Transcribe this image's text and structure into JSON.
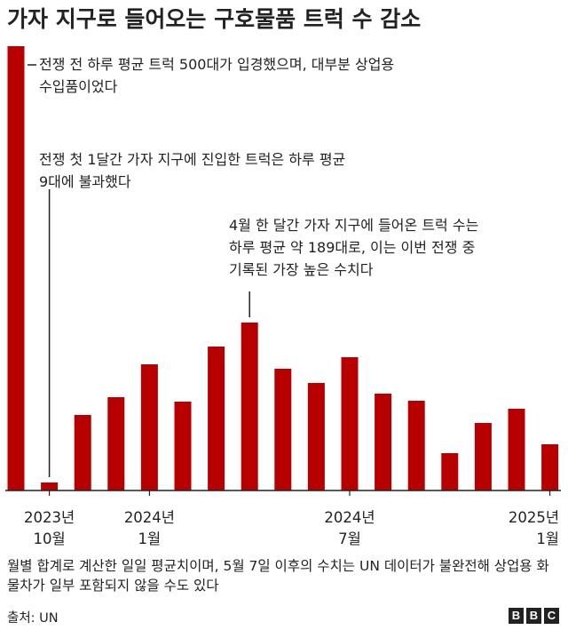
{
  "chart_data": {
    "type": "bar",
    "title": "가자 지구로 들어오는 구호물품 트럭 수 감소",
    "color": "#b80000",
    "axis_color": "#222222",
    "categories": [
      "전쟁 전",
      "2023-10",
      "2023-11",
      "2023-12",
      "2024-01",
      "2024-02",
      "2024-03",
      "2024-04",
      "2024-05",
      "2024-06",
      "2024-07",
      "2024-08",
      "2024-09",
      "2024-10",
      "2024-11",
      "2024-12",
      "2025-01"
    ],
    "values": [
      500,
      9,
      85,
      105,
      142,
      100,
      162,
      189,
      137,
      121,
      150,
      109,
      101,
      42,
      76,
      92,
      52
    ],
    "ylim": [
      0,
      500
    ],
    "x_tick_labels": [
      {
        "index": 1,
        "lines": [
          "2023년",
          "10월"
        ]
      },
      {
        "index": 4,
        "lines": [
          "2024년",
          "1월"
        ]
      },
      {
        "index": 10,
        "lines": [
          "2024년",
          "7월"
        ]
      },
      {
        "index": 16,
        "lines": [
          "2025년",
          "1월"
        ]
      }
    ],
    "annotations": [
      {
        "index": 0,
        "lines": [
          "전쟁 전 하루 평균 트럭 500대가 입경했으며, 대부분 상업용",
          "수입품이었다"
        ]
      },
      {
        "index": 1,
        "lines": [
          "전쟁 첫 1달간 가자 지구에 진입한 트럭은 하루 평균",
          "9대에 불과했다"
        ]
      },
      {
        "index": 7,
        "lines": [
          "4월 한 달간 가자 지구에 들어온 트럭 수는",
          "하루 평균 약 189대로, 이는 이번 전쟁 중",
          "기록된 가장 높은 수치다"
        ]
      }
    ]
  },
  "footnote": "월별 합계로 계산한 일일 평균치이며, 5월 7일 이후의 수치는 UN 데이터가 불완전해 상업용 화물차가 일부 포함되지 않을 수도 있다",
  "source": "출처: UN",
  "logo": [
    "B",
    "B",
    "C"
  ]
}
